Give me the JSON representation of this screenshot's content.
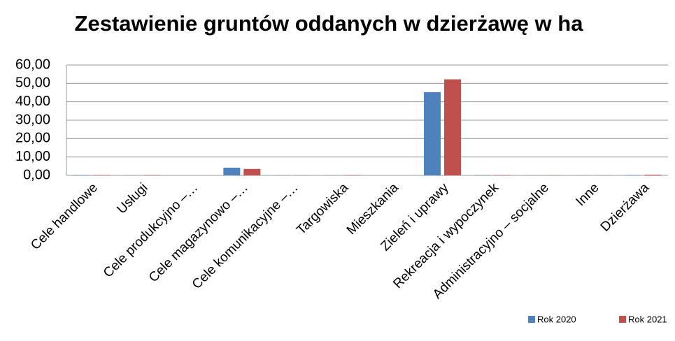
{
  "chart_data": {
    "type": "bar",
    "title": "Zestawienie gruntów oddanych w dzierżawę w ha",
    "categories": [
      "Cele handlowe",
      "Usługi",
      "Cele produkcyjno –…",
      "Cele magazynowo –…",
      "Cele komunikacyjne –…",
      "Targowiska",
      "Mieszkania",
      "Zieleń i uprawy",
      "Rekreacja i wypoczynek",
      "Administracyjno – socjalne",
      "Inne",
      "Dzierżawa"
    ],
    "series": [
      {
        "name": "Rok 2020",
        "color": "#4f81bd",
        "values": [
          0.2,
          0.1,
          0,
          4.2,
          0.1,
          0.1,
          0,
          45.2,
          0.2,
          0.1,
          0.1,
          0.2
        ]
      },
      {
        "name": "Rok 2021",
        "color": "#c0504d",
        "values": [
          0.2,
          0.2,
          0,
          3.5,
          0.1,
          0.2,
          0,
          52.2,
          0.2,
          0.1,
          0.1,
          0.4
        ]
      }
    ],
    "ylim": [
      0,
      60
    ],
    "yticks": [
      {
        "value": 0,
        "label": "0,00"
      },
      {
        "value": 10,
        "label": "10,00"
      },
      {
        "value": 20,
        "label": "20,00"
      },
      {
        "value": 30,
        "label": "30,00"
      },
      {
        "value": 40,
        "label": "40,00"
      },
      {
        "value": 50,
        "label": "50,00"
      },
      {
        "value": 60,
        "label": "60,00"
      }
    ],
    "grid": true,
    "legend": "bottom-right"
  }
}
